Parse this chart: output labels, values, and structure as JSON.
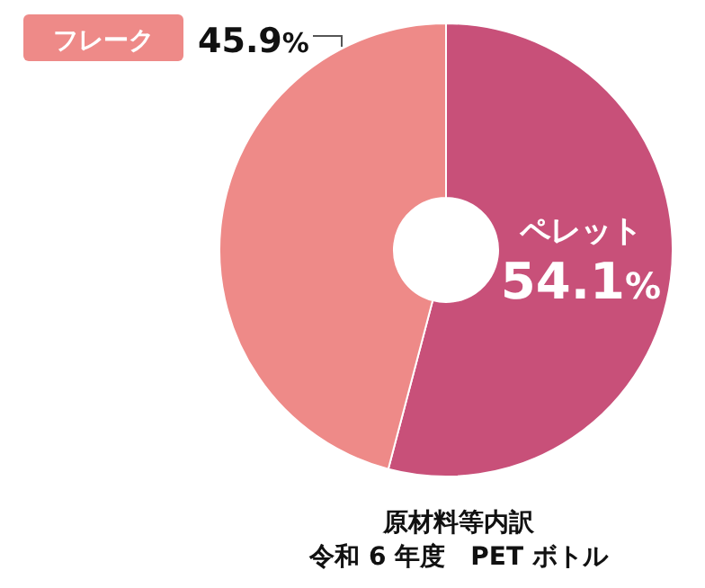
{
  "chart_data": {
    "type": "donut",
    "categories": [
      "ペレット",
      "フレーク"
    ],
    "values": [
      54.1,
      45.9
    ],
    "value_labels": [
      "54.1%",
      "45.9%"
    ],
    "colors": [
      "#c85079",
      "#ee8a88"
    ],
    "annotations": [
      "原材料等内訳",
      "令和 6 年度　PET ボトル"
    ],
    "legend": false
  }
}
